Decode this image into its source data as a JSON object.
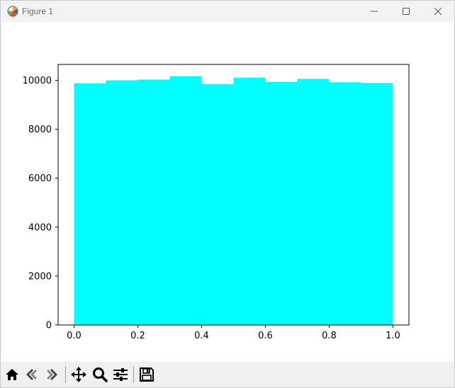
{
  "window": {
    "title": "Figure 1",
    "icon": "matplotlib-logo-icon",
    "controls": [
      "minimize-icon",
      "maximize-icon",
      "close-icon"
    ]
  },
  "toolbar": {
    "tools": [
      {
        "name": "home-icon",
        "tooltip": "Home"
      },
      {
        "name": "back-icon",
        "tooltip": "Back"
      },
      {
        "name": "forward-icon",
        "tooltip": "Forward"
      },
      {
        "name": "pan-icon",
        "tooltip": "Pan"
      },
      {
        "name": "zoom-icon",
        "tooltip": "Zoom"
      },
      {
        "name": "configure-subplots-icon",
        "tooltip": "Subplots"
      },
      {
        "name": "save-icon",
        "tooltip": "Save"
      }
    ]
  },
  "chart_data": {
    "type": "bar",
    "title": "",
    "xlabel": "",
    "ylabel": "",
    "bin_edges": [
      0.0,
      0.1,
      0.2,
      0.3,
      0.4,
      0.5,
      0.6,
      0.7,
      0.8,
      0.9,
      1.0
    ],
    "values": [
      9880,
      10000,
      10030,
      10170,
      9850,
      10110,
      9940,
      10060,
      9920,
      9890
    ],
    "xlim": [
      -0.05,
      1.05
    ],
    "ylim": [
      0,
      10650
    ],
    "xticks": [
      "0.0",
      "0.2",
      "0.4",
      "0.6",
      "0.8",
      "1.0"
    ],
    "yticks": [
      "0",
      "2000",
      "4000",
      "6000",
      "8000",
      "10000"
    ],
    "bar_color": "#00ffff",
    "grid": false,
    "legend": "none"
  }
}
